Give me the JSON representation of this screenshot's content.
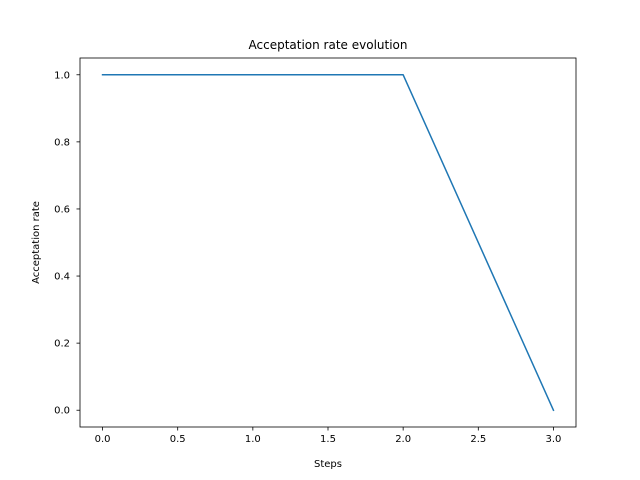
{
  "chart_data": {
    "type": "line",
    "title": "Acceptation rate evolution",
    "xlabel": "Steps",
    "ylabel": "Acceptation rate",
    "xlim": [
      -0.15,
      3.15
    ],
    "ylim": [
      -0.05,
      1.05
    ],
    "xticks": [
      0.0,
      0.5,
      1.0,
      1.5,
      2.0,
      2.5,
      3.0
    ],
    "xtick_labels": [
      "0.0",
      "0.5",
      "1.0",
      "1.5",
      "2.0",
      "2.5",
      "3.0"
    ],
    "yticks": [
      0.0,
      0.2,
      0.4,
      0.6,
      0.8,
      1.0
    ],
    "ytick_labels": [
      "0.0",
      "0.2",
      "0.4",
      "0.6",
      "0.8",
      "1.0"
    ],
    "grid": false,
    "series": [
      {
        "name": "Acceptation rate",
        "color": "#1f77b4",
        "x": [
          0,
          1,
          2,
          3
        ],
        "y": [
          1.0,
          1.0,
          1.0,
          0.0
        ]
      }
    ]
  }
}
